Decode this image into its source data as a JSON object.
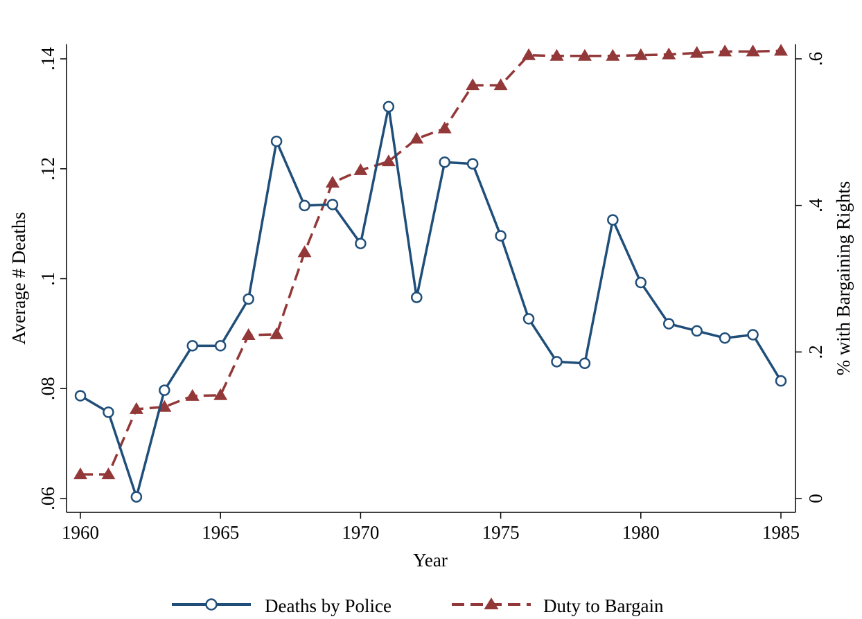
{
  "chart_data": {
    "type": "line",
    "xlabel": "Year",
    "ylabel_left": "Average # Deaths",
    "ylabel_right": "% with Bargaining Rights",
    "x": [
      1960,
      1961,
      1962,
      1963,
      1964,
      1965,
      1966,
      1967,
      1968,
      1969,
      1970,
      1971,
      1972,
      1973,
      1974,
      1975,
      1976,
      1977,
      1978,
      1979,
      1980,
      1981,
      1982,
      1983,
      1984,
      1985
    ],
    "xlim": [
      1960,
      1985
    ],
    "x_ticks": [
      1960,
      1965,
      1970,
      1975,
      1980,
      1985
    ],
    "ylim_left": [
      0.06,
      0.14
    ],
    "y_ticks_left": [
      0.06,
      0.08,
      0.1,
      0.12,
      0.14
    ],
    "y_tick_labels_left": [
      ".06",
      ".08",
      ".1",
      ".12",
      ".14"
    ],
    "ylim_right": [
      0,
      0.6
    ],
    "y_ticks_right": [
      0,
      0.2,
      0.4,
      0.6
    ],
    "y_tick_labels_right": [
      "0",
      ".2",
      ".4",
      ".6"
    ],
    "grid": false,
    "legend_position": "bottom",
    "series": [
      {
        "name": "Deaths by Police",
        "axis": "left",
        "color": "#1f4e79",
        "line_style": "solid",
        "marker": "hollow-circle",
        "values": [
          0.0787,
          0.0757,
          0.0603,
          0.0797,
          0.0878,
          0.0878,
          0.0963,
          0.125,
          0.1133,
          0.1135,
          0.1064,
          0.1313,
          0.0966,
          0.1212,
          0.1209,
          0.1078,
          0.0927,
          0.0849,
          0.0846,
          0.1107,
          0.0993,
          0.0918,
          0.0905,
          0.0892,
          0.0898,
          0.0814
        ]
      },
      {
        "name": "Duty to Bargain",
        "axis": "right",
        "color": "#933838",
        "line_style": "dashed",
        "marker": "filled-triangle",
        "values": [
          0.033,
          0.033,
          0.122,
          0.125,
          0.14,
          0.141,
          0.223,
          0.224,
          0.336,
          0.431,
          0.448,
          0.46,
          0.491,
          0.505,
          0.564,
          0.564,
          0.605,
          0.604,
          0.604,
          0.604,
          0.605,
          0.606,
          0.608,
          0.61,
          0.61,
          0.611
        ]
      }
    ]
  }
}
